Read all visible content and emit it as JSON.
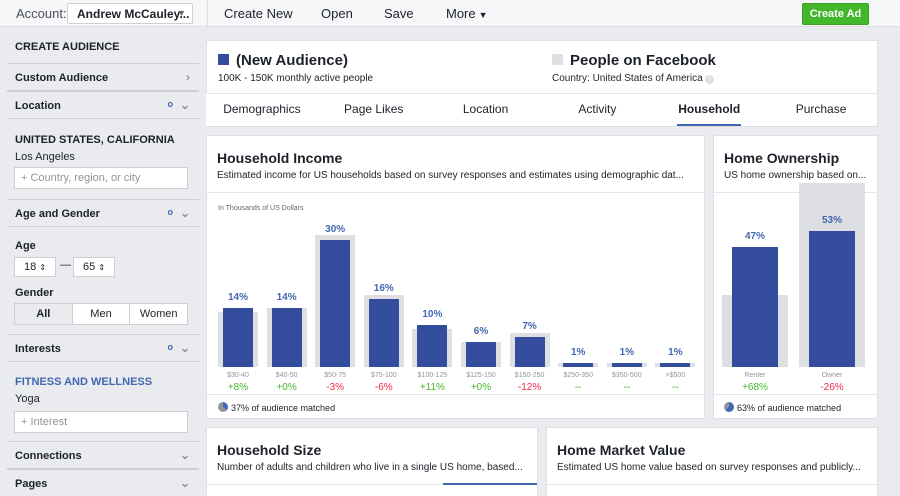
{
  "topbar": {
    "account_label": "Account:",
    "account_name": "Andrew McCauley...",
    "menu": [
      "Create New",
      "Open",
      "Save",
      "More"
    ],
    "create_ad": "Create Ad"
  },
  "sidebar": {
    "title": "CREATE AUDIENCE",
    "custom_audience": "Custom Audience",
    "location": "Location",
    "location_value": "UNITED STATES, CALIFORNIA",
    "location_city": "Los Angeles",
    "location_placeholder": "Country, region, or city",
    "age_gender": "Age and Gender",
    "age_label": "Age",
    "age_min": "18",
    "age_max": "65",
    "gender_label": "Gender",
    "gender_options": [
      "All",
      "Men",
      "Women"
    ],
    "interests": "Interests",
    "interest_category": "FITNESS AND WELLNESS",
    "interest_value": "Yoga",
    "interest_placeholder": "Interest",
    "connections": "Connections",
    "pages": "Pages"
  },
  "audience": {
    "name": "(New Audience)",
    "size": "100K - 150K monthly active people",
    "compare_name": "People on Facebook",
    "compare_country": "Country: United States of America",
    "colors": {
      "audience": "#344c9c",
      "facebook": "#dddfe2"
    }
  },
  "tabs": [
    "Demographics",
    "Page Likes",
    "Location",
    "Activity",
    "Household",
    "Purchase"
  ],
  "active_tab": "Household",
  "household_income": {
    "title": "Household Income",
    "desc": "Estimated income for US households based on survey responses and estimates using demographic dat...",
    "unit": "In Thousands of US Dollars",
    "matched": "37% of audience matched"
  },
  "home_ownership": {
    "title": "Home Ownership",
    "desc": "US home ownership based on...",
    "matched": "63% of audience matched"
  },
  "household_size": {
    "title": "Household Size",
    "desc": "Number of adults and children who live in a single US home, based..."
  },
  "home_market": {
    "title": "Home Market Value",
    "desc": "Estimated US home value based on survey responses and publicly..."
  },
  "chart_data": [
    {
      "type": "bar",
      "title": "Household Income",
      "ylabel": "In Thousands of US Dollars",
      "categories": [
        "$30-40",
        "$40-50",
        "$50-75",
        "$75-100",
        "$100-125",
        "$125-150",
        "$150-250",
        "$250-350",
        "$350-500",
        ">$500"
      ],
      "series": [
        {
          "name": "(New Audience)",
          "values": [
            14,
            14,
            30,
            16,
            10,
            6,
            7,
            1,
            1,
            1
          ]
        },
        {
          "name": "People on Facebook",
          "values": [
            13,
            14,
            31,
            17,
            9,
            6,
            8,
            1,
            1,
            1
          ]
        }
      ],
      "labels": [
        "14%",
        "14%",
        "30%",
        "16%",
        "10%",
        "6%",
        "7%",
        "1%",
        "1%",
        "1%"
      ],
      "diffs": [
        "+8%",
        "+0%",
        "-3%",
        "-6%",
        "+11%",
        "+0%",
        "-12%",
        "--",
        "--",
        "--"
      ]
    },
    {
      "type": "bar",
      "title": "Home Ownership",
      "categories": [
        "Renter",
        "Owner"
      ],
      "series": [
        {
          "name": "(New Audience)",
          "values": [
            47,
            53
          ]
        },
        {
          "name": "People on Facebook",
          "values": [
            28,
            72
          ]
        }
      ],
      "labels": [
        "47%",
        "53%"
      ],
      "diffs": [
        "+68%",
        "-26%"
      ]
    }
  ]
}
